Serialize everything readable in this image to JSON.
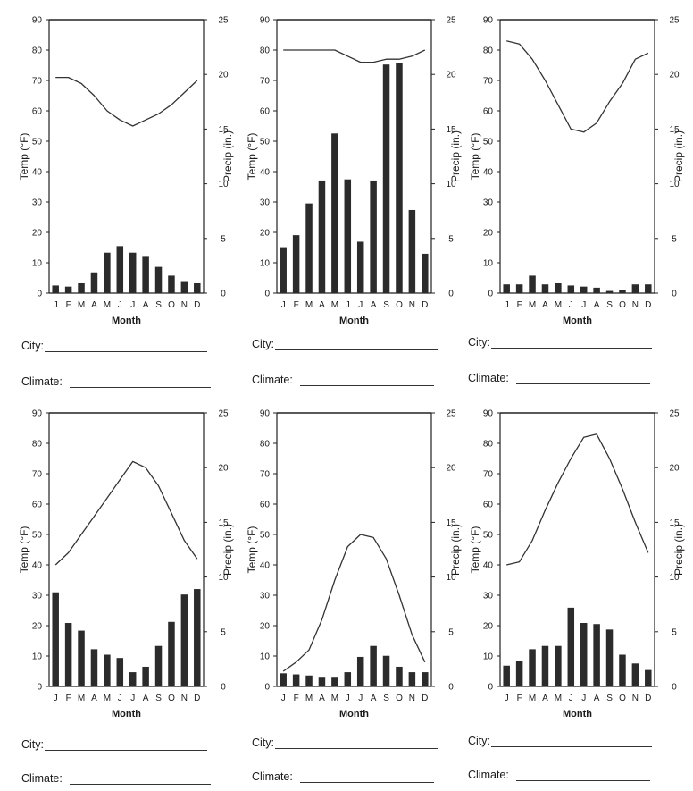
{
  "month_axis_title": "Month",
  "months": [
    "J",
    "F",
    "M",
    "A",
    "M",
    "J",
    "J",
    "A",
    "S",
    "O",
    "N",
    "D"
  ],
  "temp_axis_label": "Temp (°F)",
  "precip_axis_label": "Precip (in.)",
  "temp_ticks": [
    "0",
    "10",
    "20",
    "30",
    "40",
    "50",
    "60",
    "70",
    "80",
    "90"
  ],
  "precip_ticks": [
    "0",
    "5",
    "10",
    "15",
    "20",
    "25"
  ],
  "worksheet": {
    "city_label": "City:",
    "climate_label": "Climate:"
  },
  "chart_data": [
    {
      "type": "bar+line",
      "categories": [
        "J",
        "F",
        "M",
        "A",
        "M",
        "J",
        "J",
        "A",
        "S",
        "O",
        "N",
        "D"
      ],
      "xlabel": "Month",
      "ylabel": "Temp (°F)",
      "y2label": "Precip (in.)",
      "ylim": [
        0,
        90
      ],
      "y2lim": [
        0,
        25
      ],
      "temperature_f": [
        71,
        71,
        69,
        65,
        60,
        57,
        55,
        57,
        59,
        62,
        66,
        70
      ],
      "precipitation_in": [
        0.7,
        0.6,
        0.9,
        1.9,
        3.7,
        4.3,
        3.7,
        3.4,
        2.4,
        1.6,
        1.1,
        0.9
      ]
    },
    {
      "type": "bar+line",
      "categories": [
        "J",
        "F",
        "M",
        "A",
        "M",
        "J",
        "J",
        "A",
        "S",
        "O",
        "N",
        "D"
      ],
      "xlabel": "Month",
      "ylabel": "Temp (°F)",
      "y2label": "Precip (in.)",
      "ylim": [
        0,
        90
      ],
      "y2lim": [
        0,
        25
      ],
      "temperature_f": [
        80,
        80,
        80,
        80,
        80,
        78,
        76,
        76,
        77,
        77,
        78,
        80
      ],
      "precipitation_in": [
        4.2,
        5.3,
        8.2,
        10.3,
        14.6,
        10.4,
        4.7,
        10.3,
        20.9,
        21.0,
        7.6,
        3.6
      ]
    },
    {
      "type": "bar+line",
      "categories": [
        "J",
        "F",
        "M",
        "A",
        "M",
        "J",
        "J",
        "A",
        "S",
        "O",
        "N",
        "D"
      ],
      "xlabel": "Month",
      "ylabel": "Temp (°F)",
      "y2label": "Precip (in.)",
      "ylim": [
        0,
        90
      ],
      "y2lim": [
        0,
        25
      ],
      "temperature_f": [
        83,
        82,
        77,
        70,
        62,
        54,
        53,
        56,
        63,
        69,
        77,
        79
      ],
      "precipitation_in": [
        0.8,
        0.8,
        1.6,
        0.8,
        0.9,
        0.7,
        0.6,
        0.5,
        0.2,
        0.3,
        0.8,
        0.8
      ]
    },
    {
      "type": "bar+line",
      "categories": [
        "J",
        "F",
        "M",
        "A",
        "M",
        "J",
        "J",
        "A",
        "S",
        "O",
        "N",
        "D"
      ],
      "xlabel": "Month",
      "ylabel": "Temp (°F)",
      "y2label": "Precip (in.)",
      "ylim": [
        0,
        90
      ],
      "y2lim": [
        0,
        25
      ],
      "temperature_f": [
        40,
        44,
        50,
        56,
        62,
        68,
        74,
        72,
        66,
        57,
        48,
        42
      ],
      "precipitation_in": [
        8.6,
        5.8,
        5.1,
        3.4,
        2.9,
        2.6,
        1.3,
        1.8,
        3.7,
        5.9,
        8.4,
        8.9
      ]
    },
    {
      "type": "bar+line",
      "categories": [
        "J",
        "F",
        "M",
        "A",
        "M",
        "J",
        "J",
        "A",
        "S",
        "O",
        "N",
        "D"
      ],
      "xlabel": "Month",
      "ylabel": "Temp (°F)",
      "y2label": "Precip (in.)",
      "ylim": [
        0,
        90
      ],
      "y2lim": [
        0,
        25
      ],
      "temperature_f": [
        5,
        8,
        12,
        22,
        35,
        46,
        50,
        49,
        42,
        30,
        17,
        8
      ],
      "precipitation_in": [
        1.2,
        1.1,
        1.0,
        0.8,
        0.8,
        1.3,
        2.7,
        3.7,
        2.8,
        1.8,
        1.3,
        1.3
      ]
    },
    {
      "type": "bar+line",
      "categories": [
        "J",
        "F",
        "M",
        "A",
        "M",
        "J",
        "J",
        "A",
        "S",
        "O",
        "N",
        "D"
      ],
      "xlabel": "Month",
      "ylabel": "Temp (°F)",
      "y2label": "Precip (in.)",
      "ylim": [
        0,
        90
      ],
      "y2lim": [
        0,
        25
      ],
      "temperature_f": [
        40,
        41,
        48,
        58,
        67,
        75,
        82,
        83,
        75,
        65,
        54,
        44
      ],
      "precipitation_in": [
        1.9,
        2.3,
        3.4,
        3.7,
        3.7,
        7.2,
        5.8,
        5.7,
        5.2,
        2.9,
        2.1,
        1.5
      ]
    }
  ]
}
